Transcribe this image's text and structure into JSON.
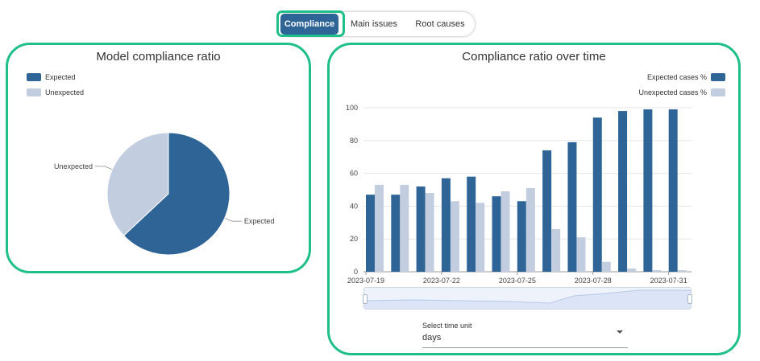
{
  "tabs": {
    "items": [
      {
        "label": "Compliance",
        "active": true
      },
      {
        "label": "Main issues",
        "active": false
      },
      {
        "label": "Root causes",
        "active": false
      }
    ]
  },
  "colors": {
    "accent_border": "#1fbf8a",
    "expected": "#2f6497",
    "unexpected": "#c3cde0"
  },
  "left_panel": {
    "title": "Model compliance ratio",
    "legend": [
      "Expected",
      "Unexpected"
    ],
    "slice_labels": {
      "expected": "Expected",
      "unexpected": "Unexpected"
    }
  },
  "right_panel": {
    "title": "Compliance ratio over time",
    "legend": [
      "Expected cases %",
      "Unexpected cases %"
    ],
    "select": {
      "label": "Select time unit",
      "value": "days"
    }
  },
  "chart_data": [
    {
      "type": "pie",
      "title": "Model compliance ratio",
      "categories": [
        "Expected",
        "Unexpected"
      ],
      "values": [
        63,
        37
      ]
    },
    {
      "type": "bar",
      "title": "Compliance ratio over time",
      "x": [
        "2023-07-19",
        "2023-07-20",
        "2023-07-21",
        "2023-07-22",
        "2023-07-23",
        "2023-07-24",
        "2023-07-25",
        "2023-07-26",
        "2023-07-27",
        "2023-07-28",
        "2023-07-29",
        "2023-07-30",
        "2023-07-31"
      ],
      "x_tick_labels": [
        "2023-07-19",
        "2023-07-22",
        "2023-07-25",
        "2023-07-28",
        "2023-07-31"
      ],
      "series": [
        {
          "name": "Expected cases %",
          "values": [
            47,
            47,
            52,
            57,
            58,
            46,
            43,
            74,
            79,
            94,
            98,
            99,
            99
          ]
        },
        {
          "name": "Unexpected cases %",
          "values": [
            53,
            53,
            48,
            43,
            42,
            49,
            51,
            26,
            21,
            6,
            2,
            1,
            1
          ]
        }
      ],
      "yticks": [
        0,
        20,
        40,
        60,
        80,
        100
      ],
      "ylim": [
        0,
        100
      ],
      "grid": true,
      "legend_position": "top-right"
    }
  ]
}
